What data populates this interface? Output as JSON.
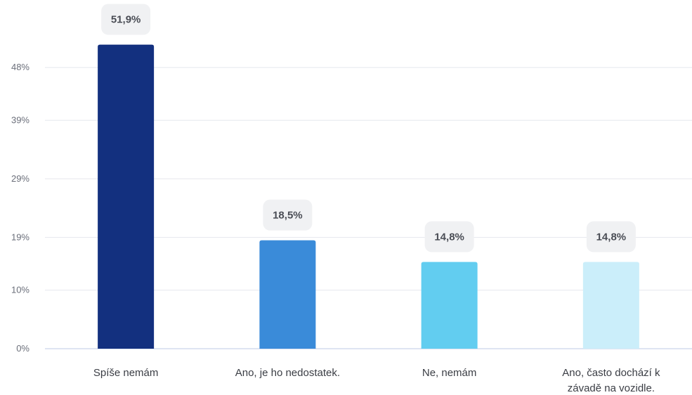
{
  "chart_data": {
    "type": "bar",
    "title": "",
    "xlabel": "",
    "ylabel": "",
    "categories": [
      [
        "Spíše nemám"
      ],
      [
        "Ano, je ho nedostatek."
      ],
      [
        "Ne, nemám"
      ],
      [
        "Ano, často dochází k",
        "závadě na vozidle."
      ]
    ],
    "values": [
      51.9,
      18.5,
      14.8,
      14.8
    ],
    "value_labels": [
      "51,9%",
      "18,5%",
      "14,8%",
      "14,8%"
    ],
    "bar_colors": [
      "#13307f",
      "#3a8bd9",
      "#62cdf0",
      "#cbeefa"
    ],
    "y_ticks": [
      "0%",
      "10%",
      "19%",
      "29%",
      "39%",
      "48%"
    ],
    "ylim": [
      0,
      57.7
    ],
    "grid": true,
    "legend": "none"
  }
}
